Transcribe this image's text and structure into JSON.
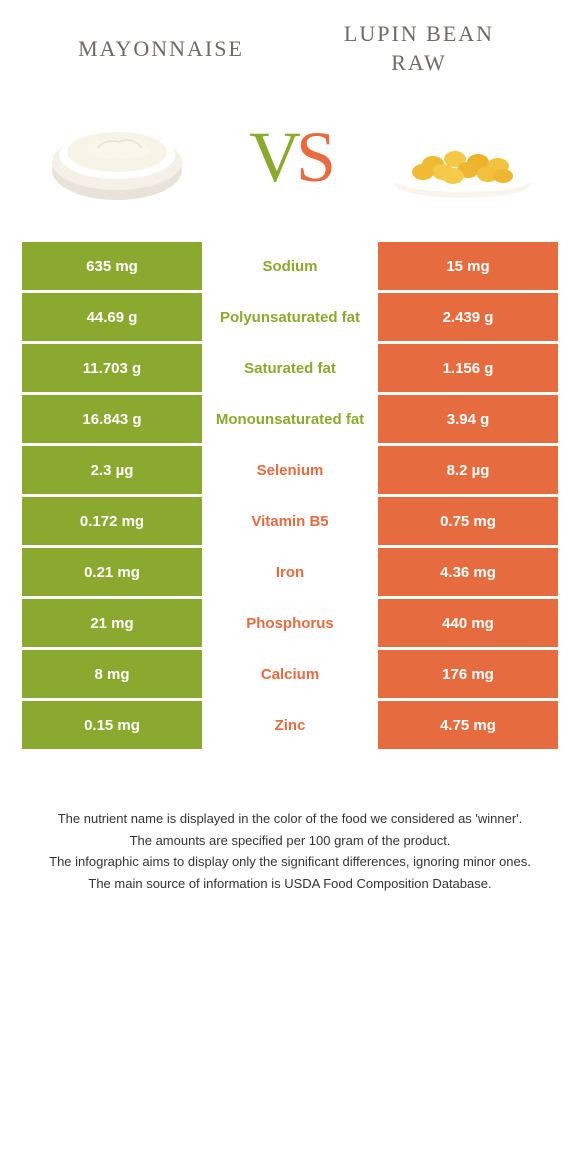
{
  "header": {
    "left_title": "MAYONNAISE",
    "right_title": "LUPIN BEAN RAW",
    "vs_v": "V",
    "vs_s": "S"
  },
  "colors": {
    "left": "#8ba82f",
    "right": "#e66b3f",
    "title": "#706a64",
    "text": "#333333",
    "bg": "#ffffff"
  },
  "rows": [
    {
      "left": "635 mg",
      "label": "Sodium",
      "right": "15 mg",
      "winner": "left"
    },
    {
      "left": "44.69 g",
      "label": "Polyunsaturated fat",
      "right": "2.439 g",
      "winner": "left"
    },
    {
      "left": "11.703 g",
      "label": "Saturated fat",
      "right": "1.156 g",
      "winner": "left"
    },
    {
      "left": "16.843 g",
      "label": "Monounsaturated fat",
      "right": "3.94 g",
      "winner": "left"
    },
    {
      "left": "2.3 µg",
      "label": "Selenium",
      "right": "8.2 µg",
      "winner": "right"
    },
    {
      "left": "0.172 mg",
      "label": "Vitamin B5",
      "right": "0.75 mg",
      "winner": "right"
    },
    {
      "left": "0.21 mg",
      "label": "Iron",
      "right": "4.36 mg",
      "winner": "right"
    },
    {
      "left": "21 mg",
      "label": "Phosphorus",
      "right": "440 mg",
      "winner": "right"
    },
    {
      "left": "8 mg",
      "label": "Calcium",
      "right": "176 mg",
      "winner": "right"
    },
    {
      "left": "0.15 mg",
      "label": "Zinc",
      "right": "4.75 mg",
      "winner": "right"
    }
  ],
  "footer": {
    "line1": "The nutrient name is displayed in the color of the food we considered as 'winner'.",
    "line2": "The amounts are specified per 100 gram of the product.",
    "line3": "The infographic aims to display only the significant differences, ignoring minor ones.",
    "line4": "The main source of information is USDA Food Composition Database."
  }
}
